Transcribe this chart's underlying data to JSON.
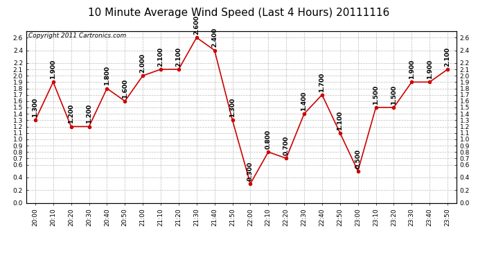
{
  "title": "10 Minute Average Wind Speed (Last 4 Hours) 20111116",
  "copyright": "Copyright 2011 Cartronics.com",
  "x_labels": [
    "20:00",
    "20:10",
    "20:20",
    "20:30",
    "20:40",
    "20:50",
    "21:00",
    "21:10",
    "21:20",
    "21:30",
    "21:40",
    "21:50",
    "22:00",
    "22:10",
    "22:20",
    "22:30",
    "22:40",
    "22:50",
    "23:00",
    "23:10",
    "23:20",
    "23:30",
    "23:40",
    "23:50"
  ],
  "y_values": [
    1.3,
    1.9,
    1.2,
    1.2,
    1.8,
    1.6,
    2.0,
    2.1,
    2.1,
    2.6,
    2.4,
    1.3,
    0.3,
    0.8,
    0.7,
    1.4,
    1.7,
    1.1,
    0.5,
    1.5,
    1.5,
    1.9,
    1.9,
    2.1
  ],
  "line_color": "#cc0000",
  "marker_color": "#cc0000",
  "bg_color": "#ffffff",
  "plot_bg_color": "#ffffff",
  "grid_color": "#bbbbbb",
  "ylim": [
    0.0,
    2.7
  ],
  "ytick_vals": [
    0.0,
    0.2,
    0.4,
    0.6,
    0.7,
    0.8,
    0.9,
    1.0,
    1.1,
    1.2,
    1.3,
    1.4,
    1.5,
    1.6,
    1.7,
    1.8,
    1.9,
    2.0,
    2.1,
    2.2,
    2.4,
    2.6
  ],
  "title_fontsize": 11,
  "label_fontsize": 6.5,
  "annotation_fontsize": 6.5,
  "copyright_fontsize": 6.5
}
